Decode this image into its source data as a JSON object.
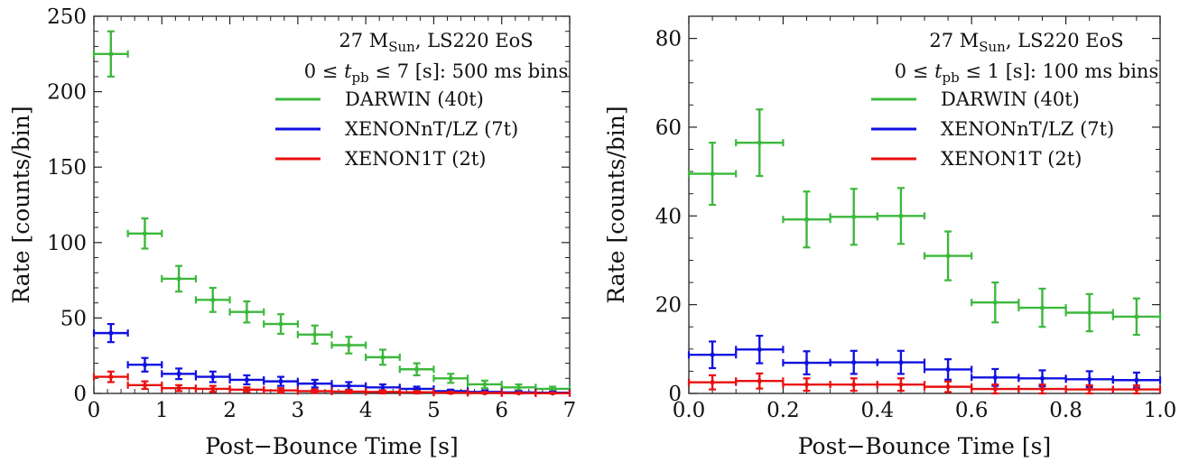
{
  "chart_data": [
    {
      "type": "errorbar",
      "title": "",
      "xlabel": "Post−Bounce Time [s]",
      "ylabel": "Rate [counts/bin]",
      "xlim": [
        0,
        7
      ],
      "ylim": [
        0,
        250
      ],
      "xticks": [
        0,
        1,
        2,
        3,
        4,
        5,
        6,
        7
      ],
      "xtick_labels": [
        "0",
        "1",
        "2",
        "3",
        "4",
        "5",
        "6",
        "7"
      ],
      "yticks": [
        0,
        50,
        100,
        150,
        200,
        250
      ],
      "ytick_labels": [
        "0",
        "50",
        "100",
        "150",
        "200",
        "250"
      ],
      "bin_halfwidth": 0.25,
      "annotation": {
        "mass": "27 M",
        "mass_sub": "Sun",
        "eos": ", LS220 EoS",
        "range_pre": "0 ≤ ",
        "range_var": "t",
        "range_var_sub": "pb",
        "range_post": " ≤ 7 [s]: 500 ms bins"
      },
      "legend_position": "top-right",
      "series": [
        {
          "name": "DARWIN (40t)",
          "color": "#3cb83c",
          "x": [
            0.25,
            0.75,
            1.25,
            1.75,
            2.25,
            2.75,
            3.25,
            3.75,
            4.25,
            4.75,
            5.25,
            5.75,
            6.25,
            6.75
          ],
          "y": [
            225,
            106,
            76,
            62,
            54,
            46,
            39,
            32,
            24,
            16,
            10,
            6,
            4,
            3
          ],
          "err": [
            15,
            10,
            8.5,
            8,
            7,
            6.5,
            6,
            5.5,
            5,
            4,
            3,
            2.5,
            2,
            1.5
          ]
        },
        {
          "name": "XENONnT/LZ (7t)",
          "color": "#1010e0",
          "x": [
            0.25,
            0.75,
            1.25,
            1.75,
            2.25,
            2.75,
            3.25,
            3.75,
            4.25,
            4.75,
            5.25,
            5.75,
            6.25,
            6.75
          ],
          "y": [
            40,
            19,
            13,
            11,
            9,
            8,
            6.5,
            5,
            4,
            3,
            1.5,
            1,
            0.7,
            0.5
          ],
          "err": [
            6,
            4.5,
            3.5,
            3.5,
            3,
            3,
            2.5,
            2.5,
            2,
            1.5,
            1,
            1,
            0.8,
            0.7
          ]
        },
        {
          "name": "XENON1T (2t)",
          "color": "#e81010",
          "x": [
            0.25,
            0.75,
            1.25,
            1.75,
            2.25,
            2.75,
            3.25,
            3.75,
            4.25,
            4.75,
            5.25,
            5.75,
            6.25,
            6.75
          ],
          "y": [
            11,
            5.5,
            3.5,
            3,
            2.5,
            2,
            1.5,
            1.2,
            1,
            0.8,
            0.5,
            0.3,
            0.2,
            0.1
          ],
          "err": [
            3.5,
            2.5,
            2,
            2,
            1.5,
            1.5,
            1.2,
            1,
            1,
            0.8,
            0.6,
            0.5,
            0.4,
            0.3
          ]
        }
      ]
    },
    {
      "type": "errorbar",
      "title": "",
      "xlabel": "Post−Bounce Time [s]",
      "ylabel": "Rate [counts/bin]",
      "xlim": [
        0,
        1
      ],
      "ylim": [
        0,
        85
      ],
      "xticks": [
        0,
        0.2,
        0.4,
        0.6,
        0.8,
        1.0
      ],
      "xtick_labels": [
        "0.0",
        "0.2",
        "0.4",
        "0.6",
        "0.8",
        "1.0"
      ],
      "yticks": [
        0,
        20,
        40,
        60,
        80
      ],
      "ytick_labels": [
        "0",
        "20",
        "40",
        "60",
        "80"
      ],
      "bin_halfwidth": 0.05,
      "annotation": {
        "mass": "27 M",
        "mass_sub": "Sun",
        "eos": ", LS220 EoS",
        "range_pre": "0 ≤ ",
        "range_var": "t",
        "range_var_sub": "pb",
        "range_post": " ≤ 1 [s]: 100 ms bins"
      },
      "legend_position": "top-right",
      "series": [
        {
          "name": "DARWIN (40t)",
          "color": "#3cb83c",
          "x": [
            0.05,
            0.15,
            0.25,
            0.35,
            0.45,
            0.55,
            0.65,
            0.75,
            0.85,
            0.95
          ],
          "y": [
            49.5,
            56.5,
            39.2,
            39.8,
            40,
            31,
            20.5,
            19.3,
            18.2,
            17.3
          ],
          "err": [
            7,
            7.5,
            6.3,
            6.3,
            6.3,
            5.5,
            4.5,
            4.3,
            4.2,
            4.1
          ]
        },
        {
          "name": "XENONnT/LZ (7t)",
          "color": "#1010e0",
          "x": [
            0.05,
            0.15,
            0.25,
            0.35,
            0.45,
            0.55,
            0.65,
            0.75,
            0.85,
            0.95
          ],
          "y": [
            8.7,
            9.9,
            6.9,
            7,
            7,
            5.4,
            3.6,
            3.4,
            3.2,
            3
          ],
          "err": [
            3,
            3.1,
            2.6,
            2.6,
            2.6,
            2.3,
            1.9,
            1.8,
            1.8,
            1.7
          ]
        },
        {
          "name": "XENON1T (2t)",
          "color": "#e81010",
          "x": [
            0.05,
            0.15,
            0.25,
            0.35,
            0.45,
            0.55,
            0.65,
            0.75,
            0.85,
            0.95
          ],
          "y": [
            2.5,
            2.8,
            2,
            2,
            2,
            1.5,
            1,
            1,
            0.9,
            0.9
          ],
          "err": [
            1.6,
            1.7,
            1.4,
            1.4,
            1.4,
            1.2,
            1,
            1,
            0.95,
            0.9
          ]
        }
      ]
    }
  ]
}
